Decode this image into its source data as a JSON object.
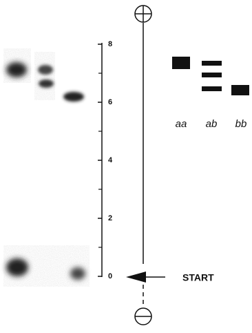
{
  "scale": {
    "ticks": [
      "0",
      "2",
      "4",
      "6",
      "8"
    ]
  },
  "lanes": [
    "aa",
    "ab",
    "bb"
  ],
  "start_label": "START"
}
